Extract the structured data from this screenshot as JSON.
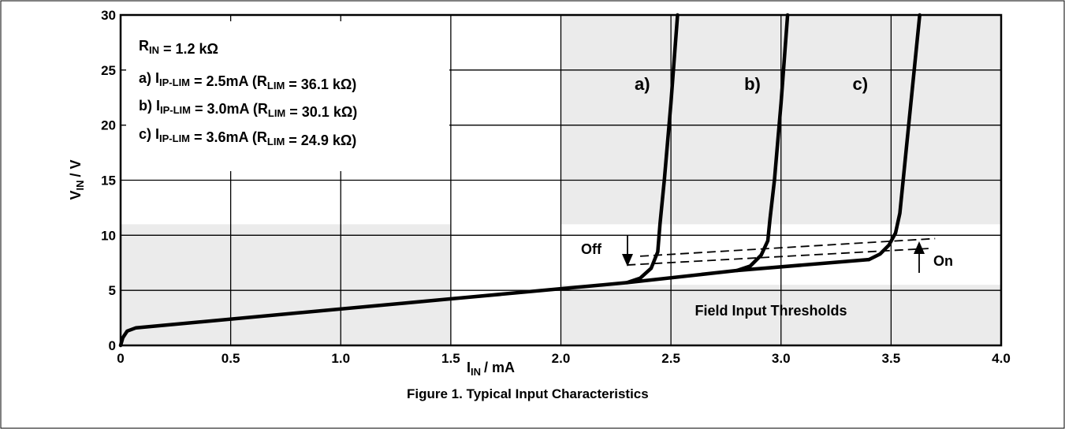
{
  "chart_data": {
    "type": "line",
    "caption": "Figure 1. Typical Input Characteristics",
    "xlabel": {
      "main": "I",
      "sub": "IN",
      "rest": "/ mA"
    },
    "ylabel": {
      "main": "V",
      "sub": "IN",
      "rest": "/ V"
    },
    "xlim": [
      0,
      4.0
    ],
    "ylim": [
      0,
      30
    ],
    "x_ticks": [
      0,
      0.5,
      1.0,
      1.5,
      2.0,
      2.5,
      3.0,
      3.5,
      4.0
    ],
    "x_tick_labels": [
      "0",
      "0.5",
      "1.0",
      "1.5",
      "2.0",
      "2.5",
      "3.0",
      "3.5",
      "4.0"
    ],
    "y_ticks": [
      0,
      5,
      10,
      15,
      20,
      25,
      30
    ],
    "y_tick_labels": [
      "0",
      "5",
      "10",
      "15",
      "20",
      "25",
      "30"
    ],
    "grid": true,
    "legend_lines": [
      {
        "pre": "R",
        "sub": "IN",
        "post": " = 1.2 kΩ"
      },
      {
        "pre": "a) I",
        "sub": "IP-LIM",
        "post": " = 2.5mA (R",
        "sub2": "LIM",
        "post2": " = 36.1 kΩ)"
      },
      {
        "pre": "b) I",
        "sub": "IP-LIM",
        "post": " = 3.0mA (R",
        "sub2": "LIM",
        "post2": " = 30.1 kΩ)"
      },
      {
        "pre": "c) I",
        "sub": "IP-LIM",
        "post": " = 3.6mA (R",
        "sub2": "LIM",
        "post2": " = 24.9 kΩ)"
      }
    ],
    "shaded_regions": [
      {
        "x": [
          0,
          1.5
        ],
        "y": [
          0,
          11
        ]
      },
      {
        "x": [
          2.0,
          4.0
        ],
        "y": [
          0,
          5.5
        ]
      },
      {
        "x": [
          2.0,
          4.0
        ],
        "y": [
          11,
          30
        ]
      }
    ],
    "base_line": [
      [
        0,
        0
      ],
      [
        0.01,
        0.7
      ],
      [
        0.03,
        1.3
      ],
      [
        0.07,
        1.6
      ],
      [
        2.3,
        5.7
      ],
      [
        2.8,
        6.8
      ],
      [
        3.4,
        7.8
      ]
    ],
    "series": [
      {
        "name": "a)",
        "x": [
          2.3,
          2.36,
          2.41,
          2.44,
          2.45,
          2.47,
          2.5,
          2.53
        ],
        "y": [
          5.7,
          6.1,
          7.0,
          8.5,
          11,
          15,
          22,
          30
        ]
      },
      {
        "name": "b)",
        "x": [
          2.8,
          2.86,
          2.91,
          2.94,
          2.95,
          2.97,
          3.0,
          3.03
        ],
        "y": [
          6.8,
          7.2,
          8.2,
          9.5,
          11.5,
          15,
          22,
          30
        ]
      },
      {
        "name": "c)",
        "x": [
          3.4,
          3.45,
          3.49,
          3.52,
          3.54,
          3.56,
          3.59,
          3.63
        ],
        "y": [
          7.8,
          8.3,
          9.1,
          10.2,
          12,
          16,
          22,
          30
        ]
      }
    ],
    "threshold_lines": [
      {
        "x": [
          2.3,
          3.67
        ],
        "y": [
          7.3,
          8.8
        ]
      },
      {
        "x": [
          2.36,
          3.7
        ],
        "y": [
          8.1,
          9.7
        ]
      }
    ],
    "annotations": {
      "off": "Off",
      "on": "On",
      "thresholds": "Field Input Thresholds"
    }
  }
}
